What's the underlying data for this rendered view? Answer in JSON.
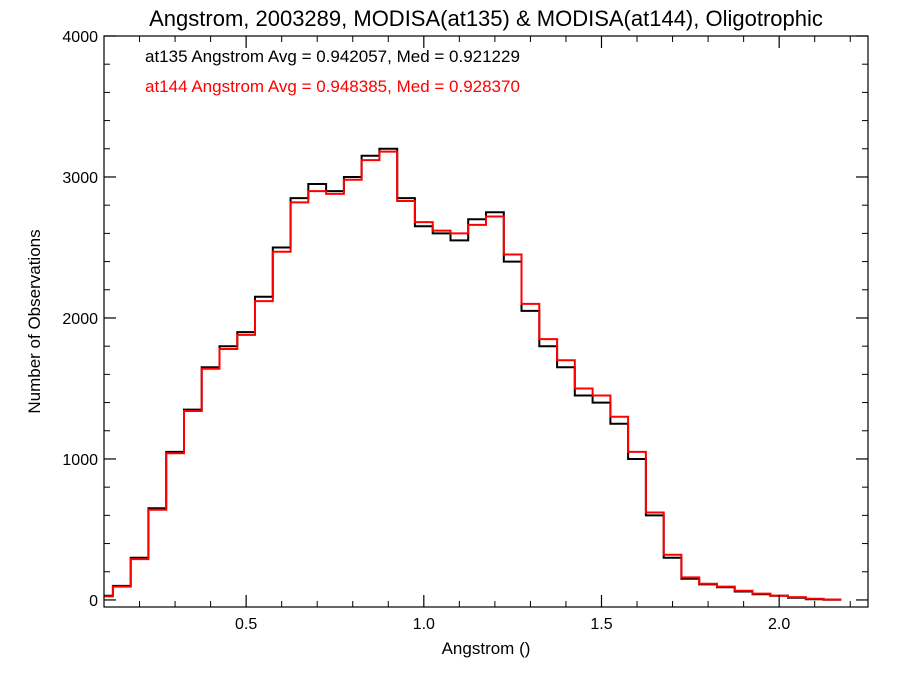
{
  "chart_data": {
    "type": "line",
    "title": "Angstrom, 2003289, MODISA(at135) & MODISA(at144), Oligotrophic",
    "xlabel": "Angstrom ()",
    "ylabel": "Number of Observations",
    "xlim": [
      0.1,
      2.25
    ],
    "ylim": [
      -50,
      4000
    ],
    "x_ticks": [
      0.5,
      1.0,
      1.5,
      2.0
    ],
    "x_tick_labels": [
      "0.5",
      "1.0",
      "1.5",
      "2.0"
    ],
    "y_ticks": [
      0,
      1000,
      2000,
      3000,
      4000
    ],
    "y_tick_labels": [
      "0",
      "1000",
      "2000",
      "3000",
      "4000"
    ],
    "annotations": [
      {
        "text": "at135 Angstrom Avg = 0.942057, Med = 0.921229",
        "color": "#000000"
      },
      {
        "text": "at144 Angstrom Avg = 0.948385, Med = 0.928370",
        "color": "#ff0000"
      }
    ],
    "series": [
      {
        "color": "#000000",
        "x": [
          0.1,
          0.15,
          0.2,
          0.25,
          0.3,
          0.35,
          0.4,
          0.45,
          0.5,
          0.55,
          0.6,
          0.65,
          0.7,
          0.75,
          0.8,
          0.85,
          0.9,
          0.95,
          1.0,
          1.05,
          1.1,
          1.15,
          1.2,
          1.25,
          1.3,
          1.35,
          1.4,
          1.45,
          1.5,
          1.55,
          1.6,
          1.65,
          1.7,
          1.75,
          1.8,
          1.85,
          1.9,
          1.95,
          2.0,
          2.05,
          2.1,
          2.15
        ],
        "values": [
          30,
          100,
          300,
          650,
          1050,
          1350,
          1650,
          1800,
          1900,
          2150,
          2500,
          2850,
          2950,
          2900,
          3000,
          3150,
          3200,
          2850,
          2650,
          2600,
          2550,
          2700,
          2750,
          2400,
          2050,
          1800,
          1650,
          1450,
          1400,
          1250,
          1000,
          600,
          300,
          150,
          110,
          90,
          60,
          40,
          30,
          15,
          5,
          2
        ]
      },
      {
        "color": "#ff0000",
        "x": [
          0.1,
          0.15,
          0.2,
          0.25,
          0.3,
          0.35,
          0.4,
          0.45,
          0.5,
          0.55,
          0.6,
          0.65,
          0.7,
          0.75,
          0.8,
          0.85,
          0.9,
          0.95,
          1.0,
          1.05,
          1.1,
          1.15,
          1.2,
          1.25,
          1.3,
          1.35,
          1.4,
          1.45,
          1.5,
          1.55,
          1.6,
          1.65,
          1.7,
          1.75,
          1.8,
          1.85,
          1.9,
          1.95,
          2.0,
          2.05,
          2.1,
          2.15
        ],
        "values": [
          25,
          95,
          290,
          640,
          1040,
          1340,
          1640,
          1780,
          1880,
          2120,
          2470,
          2820,
          2900,
          2880,
          2980,
          3120,
          3180,
          2830,
          2680,
          2620,
          2600,
          2660,
          2720,
          2450,
          2100,
          1850,
          1700,
          1500,
          1450,
          1300,
          1050,
          620,
          320,
          160,
          115,
          95,
          65,
          45,
          30,
          20,
          8,
          3
        ]
      }
    ]
  }
}
